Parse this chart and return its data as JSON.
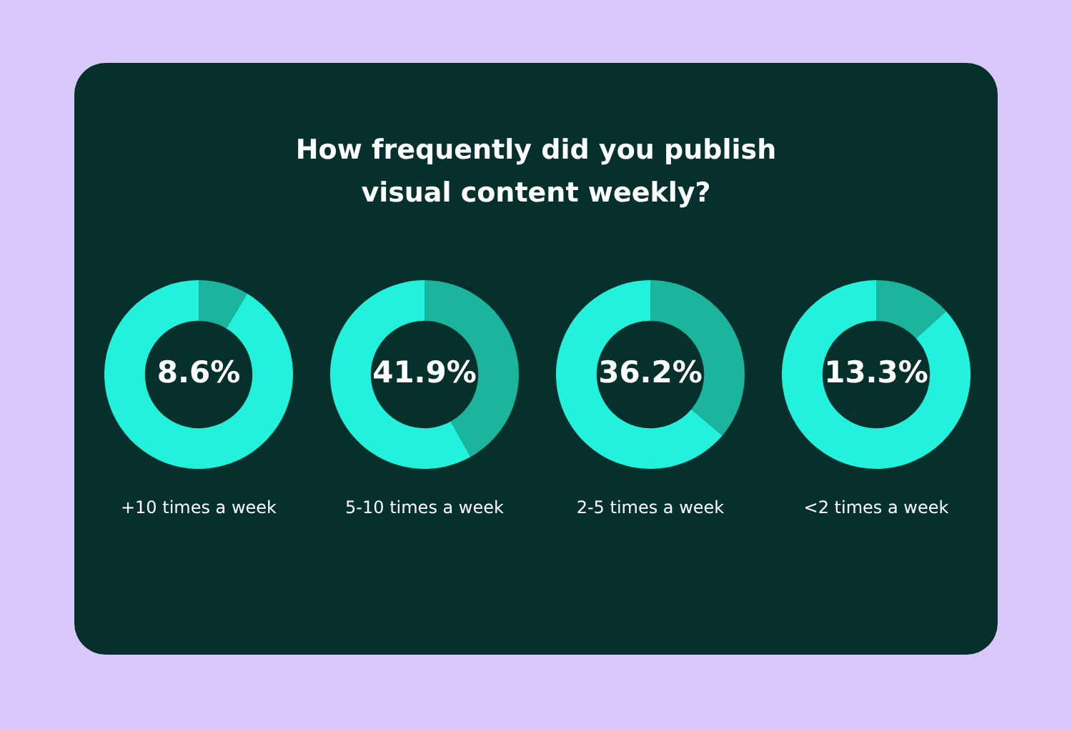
{
  "chart_data": [
    {
      "type": "other",
      "title": "How frequently did you publish\nvisual content weekly?"
    },
    {
      "type": "donut",
      "xlabel": "+10 times a week",
      "categories": [
        null,
        null
      ],
      "values": [
        8.6,
        91.4
      ],
      "colors": [
        "#1bb49c",
        "#22f2dc"
      ],
      "value_labels": [
        "8.6%",
        null
      ]
    },
    {
      "type": "donut",
      "xlabel": "5-10 times a week",
      "categories": [
        null,
        null
      ],
      "values": [
        41.9,
        58.1
      ],
      "colors": [
        "#1bb49c",
        "#22f2dc"
      ],
      "value_labels": [
        "41.9%",
        null
      ]
    },
    {
      "type": "donut",
      "xlabel": "2-5 times a week",
      "categories": [
        null,
        null
      ],
      "values": [
        36.2,
        63.8
      ],
      "colors": [
        "#1bb49c",
        "#22f2dc"
      ],
      "value_labels": [
        "36.2%",
        null
      ]
    },
    {
      "type": "donut",
      "xlabel": "<2 times a week",
      "categories": [
        null,
        null
      ],
      "values": [
        13.3,
        86.7
      ],
      "colors": [
        "#1bb49c",
        "#22f2dc"
      ],
      "value_labels": [
        "13.3%",
        null
      ]
    }
  ]
}
